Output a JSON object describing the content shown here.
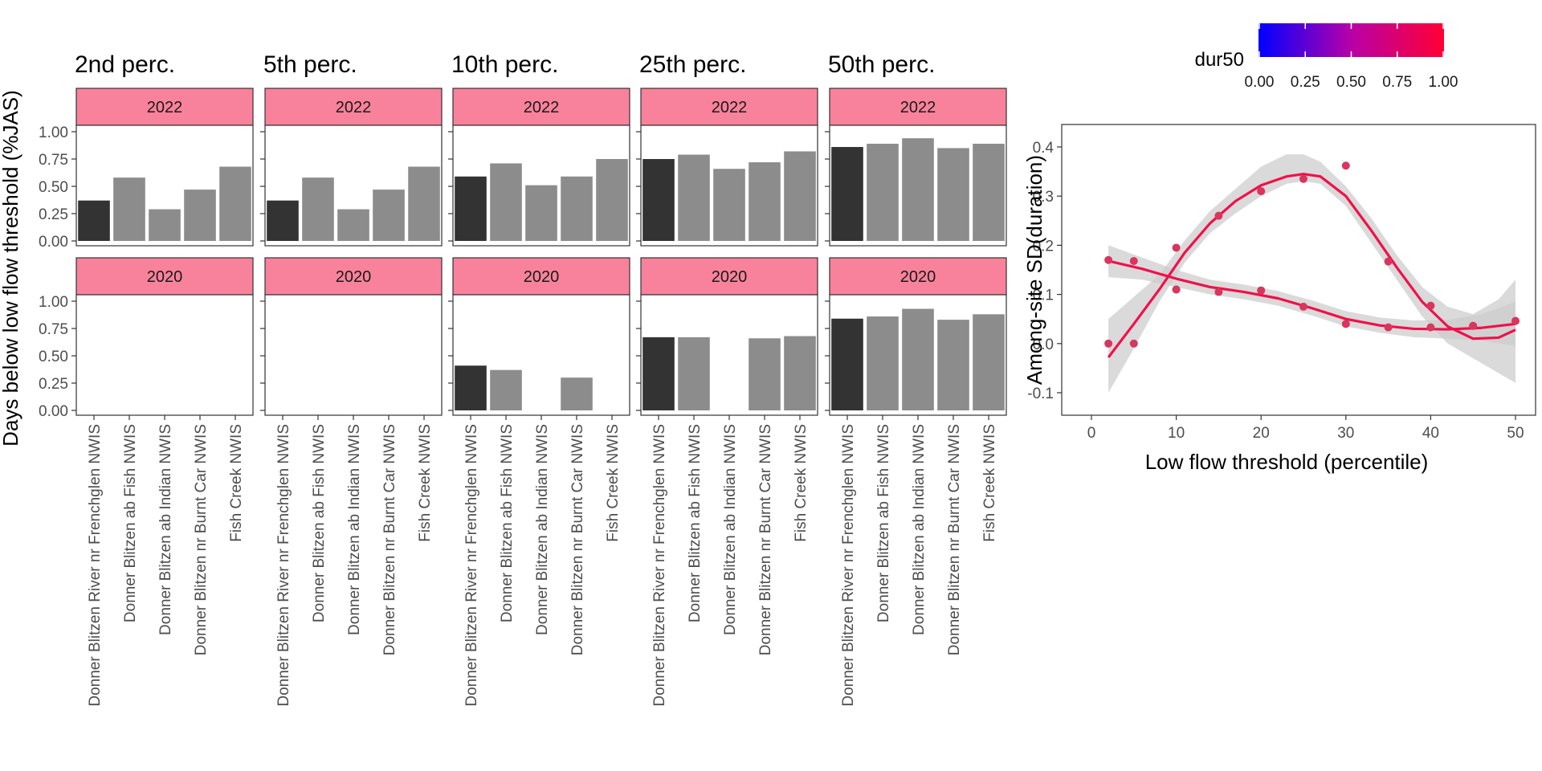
{
  "chart_data": [
    {
      "type": "bar",
      "ylabel": "Days below low flow threshold (%JAS)",
      "ylim": [
        0,
        1.0
      ],
      "yticks": [
        "1.00",
        "0.75",
        "0.50",
        "0.25",
        "0.00"
      ],
      "categories": [
        "Donner Blitzen River nr Frenchglen NWIS",
        "Donner Blitzen ab Fish NWIS",
        "Donner Blitzen ab Indian NWIS",
        "Donner Blitzen nr Burnt Car NWIS",
        "Fish Creek NWIS"
      ],
      "highlight_category": "Donner Blitzen River nr Frenchglen NWIS",
      "colors": {
        "highlight": "#333333",
        "other": "#8c8c8c",
        "strip": "#f8829b"
      },
      "panels": [
        {
          "title": "2nd perc.",
          "rows": [
            {
              "year": "2022",
              "values": [
                0.37,
                0.58,
                0.29,
                0.47,
                0.68
              ]
            },
            {
              "year": "2020",
              "values": [
                0,
                0,
                0,
                0,
                0
              ]
            }
          ]
        },
        {
          "title": "5th perc.",
          "rows": [
            {
              "year": "2022",
              "values": [
                0.37,
                0.58,
                0.29,
                0.47,
                0.68
              ]
            },
            {
              "year": "2020",
              "values": [
                0,
                0,
                0,
                0,
                0
              ]
            }
          ]
        },
        {
          "title": "10th perc.",
          "rows": [
            {
              "year": "2022",
              "values": [
                0.59,
                0.71,
                0.51,
                0.59,
                0.75
              ]
            },
            {
              "year": "2020",
              "values": [
                0.41,
                0.37,
                0,
                0.3,
                0
              ]
            }
          ]
        },
        {
          "title": "25th perc.",
          "rows": [
            {
              "year": "2022",
              "values": [
                0.75,
                0.79,
                0.66,
                0.72,
                0.82
              ]
            },
            {
              "year": "2020",
              "values": [
                0.67,
                0.67,
                0,
                0.66,
                0.68
              ]
            }
          ]
        },
        {
          "title": "50th perc.",
          "rows": [
            {
              "year": "2022",
              "values": [
                0.86,
                0.89,
                0.94,
                0.85,
                0.89
              ]
            },
            {
              "year": "2020",
              "values": [
                0.84,
                0.86,
                0.93,
                0.83,
                0.88
              ]
            }
          ]
        }
      ]
    },
    {
      "type": "scatter",
      "xlabel": "Low flow threshold (percentile)",
      "ylabel": "Among-site SD(duration)",
      "xlim": [
        0,
        50
      ],
      "ylim": [
        -0.15,
        0.43
      ],
      "xticks": [
        0,
        10,
        20,
        30,
        40,
        50
      ],
      "yticks": [
        -0.1,
        0.0,
        0.1,
        0.2,
        0.3,
        0.4
      ],
      "ytick_labels": [
        "-0.1",
        "0.0",
        "0.1",
        "0.2",
        "0.3",
        "0.4"
      ],
      "legend": {
        "title": "dur50",
        "labels": [
          "0.00",
          "0.25",
          "0.50",
          "0.75",
          "1.00"
        ],
        "position": "top-right",
        "gradient": [
          "#0000ff",
          "#ff0033"
        ]
      },
      "point_color": "#d8365e",
      "line_color": "#f0104a",
      "band_color": "#cccccc",
      "series": [
        {
          "points": [
            [
              2,
              0.0
            ],
            [
              5,
              0.0
            ],
            [
              10,
              0.195
            ],
            [
              10,
              0.11
            ],
            [
              15,
              0.26
            ],
            [
              20,
              0.31
            ],
            [
              20,
              0.108
            ],
            [
              25,
              0.335
            ],
            [
              30,
              0.362
            ],
            [
              35,
              0.167
            ],
            [
              40,
              0.077
            ],
            [
              45,
              0.036
            ],
            [
              50,
              0.046
            ]
          ],
          "smooth": [
            [
              2,
              -0.028
            ],
            [
              5,
              0.04
            ],
            [
              8,
              0.11
            ],
            [
              11,
              0.185
            ],
            [
              14,
              0.245
            ],
            [
              17,
              0.29
            ],
            [
              20,
              0.322
            ],
            [
              23,
              0.34
            ],
            [
              25,
              0.345
            ],
            [
              27,
              0.34
            ],
            [
              30,
              0.3
            ],
            [
              33,
              0.23
            ],
            [
              36,
              0.155
            ],
            [
              39,
              0.085
            ],
            [
              42,
              0.035
            ],
            [
              45,
              0.01
            ],
            [
              48,
              0.012
            ],
            [
              50,
              0.028
            ]
          ],
          "band_upper": [
            [
              2,
              -0.1
            ],
            [
              5,
              -0.01
            ],
            [
              8,
              0.085
            ],
            [
              11,
              0.165
            ],
            [
              14,
              0.225
            ],
            [
              17,
              0.265
            ],
            [
              20,
              0.3
            ],
            [
              23,
              0.325
            ],
            [
              25,
              0.33
            ],
            [
              27,
              0.325
            ],
            [
              30,
              0.28
            ],
            [
              33,
              0.205
            ],
            [
              36,
              0.13
            ],
            [
              39,
              0.055
            ],
            [
              42,
              0.0
            ],
            [
              45,
              -0.03
            ],
            [
              48,
              -0.06
            ],
            [
              50,
              -0.08
            ]
          ],
          "band_lower": [
            [
              2,
              0.05
            ],
            [
              5,
              0.095
            ],
            [
              8,
              0.14
            ],
            [
              11,
              0.21
            ],
            [
              14,
              0.27
            ],
            [
              17,
              0.315
            ],
            [
              20,
              0.36
            ],
            [
              23,
              0.385
            ],
            [
              25,
              0.385
            ],
            [
              27,
              0.37
            ],
            [
              30,
              0.32
            ],
            [
              33,
              0.255
            ],
            [
              36,
              0.18
            ],
            [
              39,
              0.115
            ],
            [
              42,
              0.075
            ],
            [
              45,
              0.06
            ],
            [
              48,
              0.09
            ],
            [
              50,
              0.13
            ]
          ]
        },
        {
          "points": [
            [
              2,
              0.17
            ],
            [
              5,
              0.168
            ],
            [
              10,
              0.11
            ],
            [
              15,
              0.105
            ],
            [
              20,
              0.108
            ],
            [
              25,
              0.075
            ],
            [
              30,
              0.04
            ],
            [
              35,
              0.033
            ],
            [
              40,
              0.033
            ],
            [
              45,
              0.036
            ],
            [
              50,
              0.046
            ]
          ],
          "smooth": [
            [
              2,
              0.168
            ],
            [
              6,
              0.152
            ],
            [
              10,
              0.132
            ],
            [
              14,
              0.115
            ],
            [
              18,
              0.105
            ],
            [
              22,
              0.092
            ],
            [
              26,
              0.072
            ],
            [
              30,
              0.05
            ],
            [
              34,
              0.037
            ],
            [
              38,
              0.03
            ],
            [
              42,
              0.029
            ],
            [
              46,
              0.032
            ],
            [
              50,
              0.04
            ]
          ],
          "band_upper": [
            [
              2,
              0.2
            ],
            [
              6,
              0.175
            ],
            [
              10,
              0.15
            ],
            [
              14,
              0.13
            ],
            [
              18,
              0.12
            ],
            [
              22,
              0.107
            ],
            [
              26,
              0.088
            ],
            [
              30,
              0.066
            ],
            [
              34,
              0.053
            ],
            [
              38,
              0.047
            ],
            [
              42,
              0.048
            ],
            [
              46,
              0.06
            ],
            [
              50,
              0.085
            ]
          ],
          "band_lower": [
            [
              2,
              0.135
            ],
            [
              6,
              0.13
            ],
            [
              10,
              0.115
            ],
            [
              14,
              0.1
            ],
            [
              18,
              0.09
            ],
            [
              22,
              0.077
            ],
            [
              26,
              0.057
            ],
            [
              30,
              0.035
            ],
            [
              34,
              0.022
            ],
            [
              38,
              0.013
            ],
            [
              42,
              0.01
            ],
            [
              46,
              0.006
            ],
            [
              50,
              -0.005
            ]
          ]
        }
      ]
    }
  ]
}
